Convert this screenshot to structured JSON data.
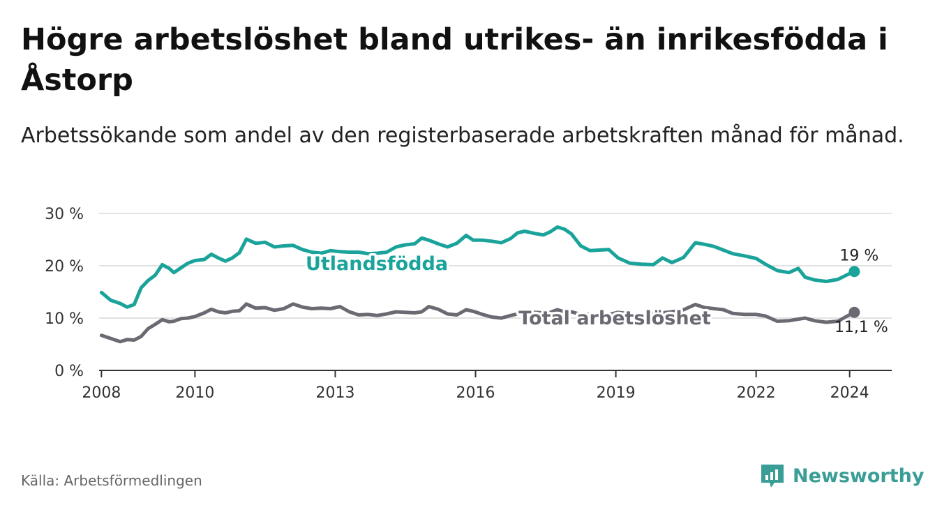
{
  "title": "Högre arbetslöshet bland utrikes- än inrikesfödda i Åstorp",
  "subtitle": "Arbetssökande som andel av den registerbaserade arbetskraften månad för månad.",
  "source": "Källa: Arbetsförmedlingen",
  "brand": {
    "name": "Newsworthy",
    "icon": "bar-chart-icon",
    "color": "#3a9d96"
  },
  "chart_data": {
    "type": "line",
    "title": "",
    "xlabel": "",
    "ylabel": "",
    "xlim": [
      2007.95,
      2024.9
    ],
    "ylim": [
      0,
      30
    ],
    "x_ticks": [
      {
        "value": 2008,
        "label": "2008"
      },
      {
        "value": 2010,
        "label": "2010"
      },
      {
        "value": 2013,
        "label": "2013"
      },
      {
        "value": 2016,
        "label": "2016"
      },
      {
        "value": 2019,
        "label": "2019"
      },
      {
        "value": 2022,
        "label": "2022"
      },
      {
        "value": 2024,
        "label": "2024"
      }
    ],
    "y_ticks": [
      {
        "value": 0,
        "label": "0 %"
      },
      {
        "value": 10,
        "label": "10 %"
      },
      {
        "value": 20,
        "label": "20 %"
      },
      {
        "value": 30,
        "label": "30 %"
      }
    ],
    "grid": true,
    "series": [
      {
        "name": "Utlandsfödda",
        "color": "#1aa39a",
        "end_label": "19 %",
        "x": [
          2008.0,
          2008.2,
          2008.4,
          2008.55,
          2008.7,
          2008.85,
          2009.0,
          2009.15,
          2009.3,
          2009.45,
          2009.55,
          2009.7,
          2009.85,
          2010.0,
          2010.2,
          2010.35,
          2010.5,
          2010.65,
          2010.8,
          2010.95,
          2011.1,
          2011.3,
          2011.5,
          2011.7,
          2011.9,
          2012.1,
          2012.3,
          2012.5,
          2012.7,
          2012.9,
          2013.1,
          2013.3,
          2013.5,
          2013.7,
          2013.9,
          2014.1,
          2014.3,
          2014.5,
          2014.7,
          2014.85,
          2015.0,
          2015.2,
          2015.4,
          2015.6,
          2015.8,
          2015.95,
          2016.15,
          2016.35,
          2016.55,
          2016.75,
          2016.9,
          2017.05,
          2017.25,
          2017.45,
          2017.6,
          2017.75,
          2017.9,
          2018.05,
          2018.25,
          2018.45,
          2018.65,
          2018.85,
          2019.05,
          2019.3,
          2019.55,
          2019.8,
          2020.0,
          2020.2,
          2020.45,
          2020.7,
          2020.9,
          2021.1,
          2021.3,
          2021.5,
          2021.75,
          2022.0,
          2022.2,
          2022.45,
          2022.7,
          2022.9,
          2023.05,
          2023.25,
          2023.5,
          2023.75,
          2023.95,
          2024.1
        ],
        "values": [
          14.9,
          13.4,
          12.8,
          12.1,
          12.6,
          15.8,
          17.2,
          18.2,
          20.2,
          19.5,
          18.7,
          19.6,
          20.5,
          21.0,
          21.2,
          22.2,
          21.5,
          20.9,
          21.5,
          22.5,
          25.1,
          24.3,
          24.5,
          23.6,
          23.8,
          23.9,
          23.1,
          22.6,
          22.4,
          22.9,
          22.7,
          22.6,
          22.6,
          22.3,
          22.4,
          22.6,
          23.6,
          24.0,
          24.2,
          25.3,
          24.9,
          24.2,
          23.6,
          24.3,
          25.8,
          24.9,
          24.9,
          24.7,
          24.4,
          25.2,
          26.3,
          26.6,
          26.2,
          25.9,
          26.5,
          27.4,
          27.0,
          26.1,
          23.8,
          22.9,
          23.0,
          23.1,
          21.5,
          20.5,
          20.3,
          20.2,
          21.5,
          20.6,
          21.6,
          24.4,
          24.1,
          23.7,
          23.0,
          22.3,
          21.9,
          21.4,
          20.3,
          19.1,
          18.7,
          19.5,
          17.8,
          17.3,
          17.0,
          17.4,
          18.3,
          18.9
        ]
      },
      {
        "name": "Total arbetslöshet",
        "color": "#6b6a72",
        "end_label": "11,1 %",
        "x": [
          2008.0,
          2008.2,
          2008.4,
          2008.55,
          2008.7,
          2008.85,
          2009.0,
          2009.15,
          2009.3,
          2009.45,
          2009.55,
          2009.7,
          2009.85,
          2010.0,
          2010.2,
          2010.35,
          2010.5,
          2010.65,
          2010.8,
          2010.95,
          2011.1,
          2011.3,
          2011.5,
          2011.7,
          2011.9,
          2012.1,
          2012.3,
          2012.5,
          2012.7,
          2012.9,
          2013.1,
          2013.3,
          2013.5,
          2013.7,
          2013.9,
          2014.1,
          2014.3,
          2014.5,
          2014.7,
          2014.85,
          2015.0,
          2015.2,
          2015.4,
          2015.6,
          2015.8,
          2015.95,
          2016.15,
          2016.35,
          2016.55,
          2016.75,
          2016.9,
          2017.05,
          2017.25,
          2017.45,
          2017.6,
          2017.75,
          2017.9,
          2018.05,
          2018.25,
          2018.45,
          2018.65,
          2018.85,
          2019.05,
          2019.3,
          2019.55,
          2019.8,
          2020.0,
          2020.2,
          2020.45,
          2020.7,
          2020.9,
          2021.1,
          2021.3,
          2021.5,
          2021.75,
          2022.0,
          2022.2,
          2022.45,
          2022.7,
          2022.9,
          2023.05,
          2023.25,
          2023.5,
          2023.75,
          2023.95,
          2024.1
        ],
        "values": [
          6.7,
          6.1,
          5.5,
          5.9,
          5.8,
          6.5,
          8.0,
          8.8,
          9.7,
          9.3,
          9.4,
          9.9,
          10.0,
          10.3,
          11.0,
          11.7,
          11.2,
          11.0,
          11.3,
          11.4,
          12.7,
          11.9,
          12.0,
          11.5,
          11.8,
          12.7,
          12.1,
          11.8,
          11.9,
          11.8,
          12.2,
          11.2,
          10.6,
          10.7,
          10.5,
          10.8,
          11.2,
          11.1,
          11.0,
          11.2,
          12.2,
          11.7,
          10.8,
          10.6,
          11.6,
          11.3,
          10.7,
          10.2,
          10.0,
          10.5,
          10.8,
          10.9,
          11.1,
          11.0,
          11.1,
          11.6,
          11.2,
          11.2,
          10.7,
          10.7,
          10.8,
          10.7,
          11.1,
          10.8,
          10.7,
          10.9,
          11.0,
          11.2,
          11.6,
          12.6,
          12.0,
          11.8,
          11.6,
          10.9,
          10.7,
          10.7,
          10.4,
          9.4,
          9.5,
          9.8,
          10.0,
          9.5,
          9.2,
          9.4,
          10.4,
          11.1
        ]
      }
    ]
  }
}
